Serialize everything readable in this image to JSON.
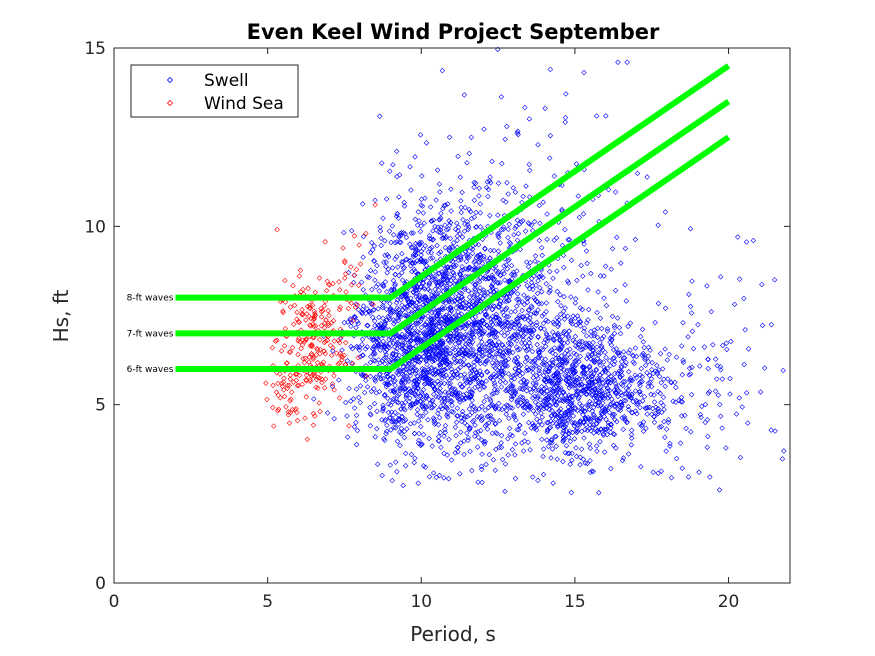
{
  "chart_data": {
    "type": "scatter",
    "title": "Even Keel Wind Project September",
    "xlabel": "Period, s",
    "ylabel": "Hs, ft",
    "xlim": [
      0,
      22
    ],
    "ylim": [
      0,
      15
    ],
    "xticks": [
      0,
      5,
      10,
      15,
      20
    ],
    "yticks": [
      0,
      5,
      10,
      15
    ],
    "grid": false,
    "legend_position": "top-left",
    "series": [
      {
        "name": "Swell",
        "color": "#0000ff",
        "marker": "diamond",
        "clusters": [
          {
            "center": [
              10.2,
              7.2
            ],
            "spread": [
              1.0,
              1.6
            ],
            "count": 1100
          },
          {
            "center": [
              11.8,
              7.0
            ],
            "spread": [
              1.1,
              1.7
            ],
            "count": 700
          },
          {
            "center": [
              9.0,
              6.3
            ],
            "spread": [
              0.8,
              1.2
            ],
            "count": 350
          },
          {
            "center": [
              13.0,
              6.6
            ],
            "spread": [
              1.2,
              1.8
            ],
            "count": 450
          },
          {
            "center": [
              14.6,
              5.6
            ],
            "spread": [
              0.7,
              1.0
            ],
            "count": 450
          },
          {
            "center": [
              15.8,
              5.3
            ],
            "spread": [
              0.7,
              0.9
            ],
            "count": 350
          },
          {
            "center": [
              17.4,
              5.4
            ],
            "spread": [
              0.5,
              0.9
            ],
            "count": 120
          },
          {
            "center": [
              19.2,
              5.6
            ],
            "spread": [
              0.8,
              1.6
            ],
            "count": 80
          },
          {
            "center": [
              13.5,
              10.0
            ],
            "spread": [
              2.0,
              2.0
            ],
            "count": 160
          },
          {
            "center": [
              20.5,
              6.5
            ],
            "spread": [
              1.0,
              2.0
            ],
            "count": 25
          }
        ],
        "points": [
          [
            21.8,
            3.7
          ],
          [
            21.5,
            8.5
          ],
          [
            20.3,
            9.7
          ],
          [
            16.7,
            14.6
          ],
          [
            16.4,
            14.6
          ],
          [
            14.2,
            14.4
          ],
          [
            9.2,
            12.1
          ],
          [
            9.9,
            2.8
          ],
          [
            15.5,
            3.1
          ]
        ]
      },
      {
        "name": "Wind Sea",
        "color": "#ff0000",
        "marker": "diamond",
        "clusters": [
          {
            "center": [
              6.4,
              6.7
            ],
            "spread": [
              0.55,
              0.9
            ],
            "count": 220
          },
          {
            "center": [
              5.5,
              5.3
            ],
            "spread": [
              0.3,
              0.45
            ],
            "count": 40
          },
          {
            "center": [
              7.6,
              8.3
            ],
            "spread": [
              0.35,
              0.6
            ],
            "count": 30
          }
        ],
        "points": [
          [
            8.5,
            10.6
          ],
          [
            8.2,
            9.8
          ],
          [
            5.2,
            4.4
          ]
        ]
      }
    ],
    "thresholds": [
      {
        "label": "8-ft waves",
        "color": "#00ff00",
        "x": [
          2,
          9,
          20
        ],
        "y": [
          8,
          8,
          14.5
        ]
      },
      {
        "label": "7-ft waves",
        "color": "#00ff00",
        "x": [
          2,
          9,
          20
        ],
        "y": [
          7,
          7,
          13.5
        ]
      },
      {
        "label": "6-ft waves",
        "color": "#00ff00",
        "x": [
          2,
          9,
          20
        ],
        "y": [
          6,
          6,
          12.5
        ]
      }
    ]
  }
}
